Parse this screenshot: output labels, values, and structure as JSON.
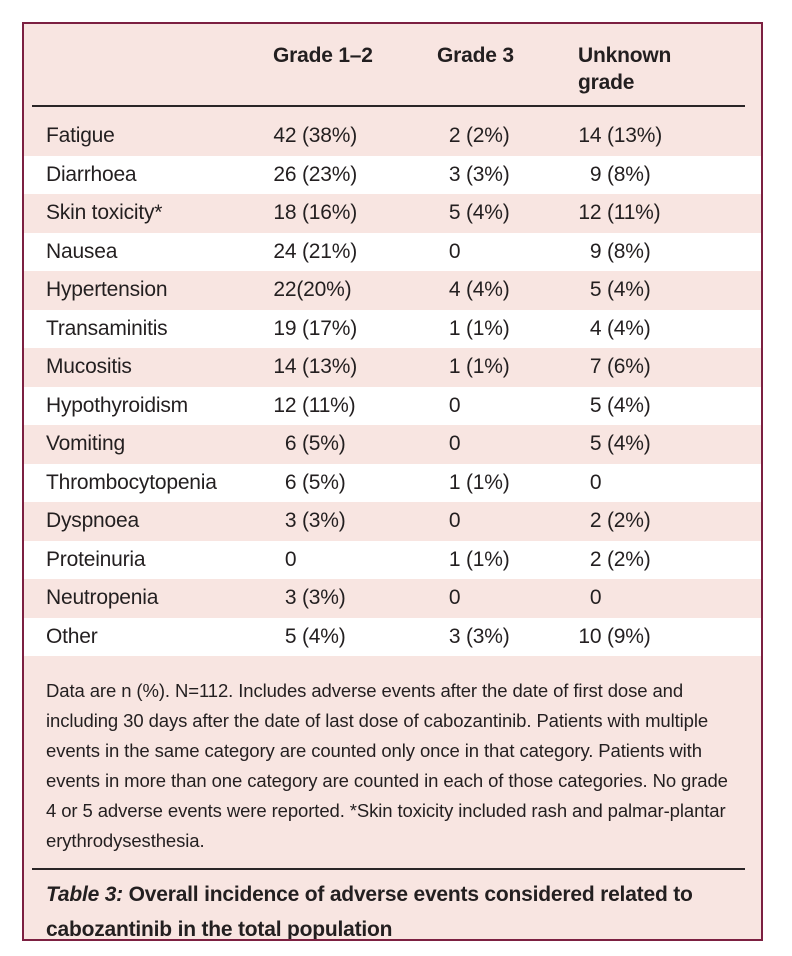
{
  "table": {
    "columns": [
      "Grade 1–2",
      "Grade 3",
      "Unknown grade"
    ],
    "rows": [
      {
        "event": "Fatigue",
        "grade12": "42 (38%)",
        "grade3": "2 (2%)",
        "unknown": "14 (13%)"
      },
      {
        "event": "Diarrhoea",
        "grade12": "26 (23%)",
        "grade3": "3 (3%)",
        "unknown": "9 (8%)"
      },
      {
        "event": "Skin toxicity*",
        "grade12": "18 (16%)",
        "grade3": "5 (4%)",
        "unknown": "12 (11%)"
      },
      {
        "event": "Nausea",
        "grade12": "24 (21%)",
        "grade3": "0",
        "unknown": "9 (8%)"
      },
      {
        "event": "Hypertension",
        "grade12": "22(20%)",
        "grade3": "4 (4%)",
        "unknown": "5 (4%)"
      },
      {
        "event": "Transaminitis",
        "grade12": "19 (17%)",
        "grade3": "1 (1%)",
        "unknown": "4 (4%)"
      },
      {
        "event": "Mucositis",
        "grade12": "14 (13%)",
        "grade3": "1 (1%)",
        "unknown": "7 (6%)"
      },
      {
        "event": "Hypothyroidism",
        "grade12": "12 (11%)",
        "grade3": "0",
        "unknown": "5 (4%)"
      },
      {
        "event": "Vomiting",
        "grade12": "6 (5%)",
        "grade3": "0",
        "unknown": "5 (4%)"
      },
      {
        "event": "Thrombocytopenia",
        "grade12": "6 (5%)",
        "grade3": "1 (1%)",
        "unknown": "0"
      },
      {
        "event": "Dyspnoea",
        "grade12": "3 (3%)",
        "grade3": "0",
        "unknown": "2 (2%)"
      },
      {
        "event": "Proteinuria",
        "grade12": "0",
        "grade3": "1 (1%)",
        "unknown": "2 (2%)"
      },
      {
        "event": "Neutropenia",
        "grade12": "3 (3%)",
        "grade3": "0",
        "unknown": "0"
      },
      {
        "event": "Other",
        "grade12": "5 (4%)",
        "grade3": "3 (3%)",
        "unknown": "10 (9%)"
      }
    ]
  },
  "footnote": {
    "text": "Data are n (%). N=112. Includes adverse events after the date of first dose and including 30 days after the date of last dose of cabozantinib. Patients with multiple events in the same category are counted only once in that category. Patients with events in more than one category are counted in each of those categories. No grade 4 or 5 adverse events were reported. *Skin toxicity included rash and palmar-plantar erythrodysesthesia."
  },
  "caption": {
    "label": "Table 3:",
    "text": "Overall incidence of adverse events considered related to cabozantinib in the total population"
  },
  "colors": {
    "frame_border": "#7c2041",
    "background_pink": "#f8e5e1",
    "stripe_white": "#ffffff",
    "rule_black": "#2a2526",
    "text": "#231f20"
  }
}
